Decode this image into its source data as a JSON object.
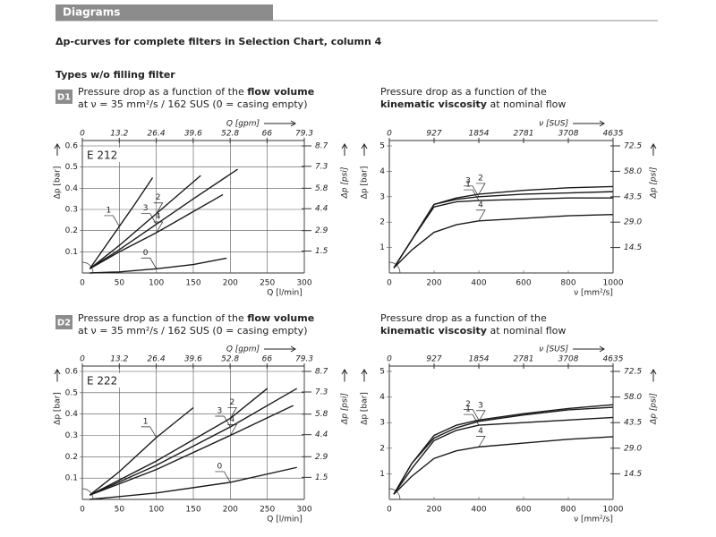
{
  "header": {
    "section": "Diagrams",
    "heading": "Δp-curves for complete filters in Selection Chart, column 4",
    "subheading": "Types w/o filling filter"
  },
  "panels": [
    "D1",
    "D2"
  ],
  "chart_data": [
    {
      "type": "line",
      "title": "Pressure drop as a function of the",
      "title_bold": "flow volume",
      "subtitle": "at ν = 35 mm²/s / 162 SUS (0 = casing empty)",
      "label": "E 212",
      "xlabel": "Q [l/min]",
      "x2label": "Q [gpm]",
      "ylabel": "Δp [bar]",
      "y2label": "Δp [psi]",
      "xlim": [
        0,
        300
      ],
      "xticks": [
        0,
        50,
        100,
        150,
        200,
        250,
        300
      ],
      "x2lim": [
        0,
        79.3
      ],
      "x2ticks": [
        0,
        13.2,
        26.4,
        39.6,
        52.8,
        66.0,
        79.3
      ],
      "ylim": [
        0,
        0.6
      ],
      "yticks": [
        0.1,
        0.2,
        0.3,
        0.4,
        0.5,
        0.6
      ],
      "y2lim": [
        0,
        8.7
      ],
      "y2ticks": [
        1.5,
        2.9,
        4.4,
        5.8,
        7.3,
        8.7
      ],
      "grid": true,
      "series": [
        {
          "name": "1",
          "color": "#1a1a1a",
          "x": [
            10,
            30,
            50,
            70,
            95
          ],
          "values": [
            0.02,
            0.12,
            0.22,
            0.32,
            0.45
          ]
        },
        {
          "name": "2",
          "color": "#1a1a1a",
          "x": [
            10,
            50,
            100,
            160
          ],
          "values": [
            0.02,
            0.13,
            0.28,
            0.46
          ]
        },
        {
          "name": "3",
          "color": "#1a1a1a",
          "x": [
            10,
            50,
            100,
            150,
            210
          ],
          "values": [
            0.02,
            0.11,
            0.23,
            0.35,
            0.49
          ]
        },
        {
          "name": "4",
          "color": "#1a1a1a",
          "x": [
            10,
            50,
            100,
            150,
            190
          ],
          "values": [
            0.02,
            0.1,
            0.19,
            0.29,
            0.37
          ]
        },
        {
          "name": "0",
          "color": "#1a1a1a",
          "x": [
            10,
            50,
            100,
            150,
            195
          ],
          "values": [
            0,
            0.005,
            0.02,
            0.04,
            0.07
          ]
        }
      ]
    },
    {
      "type": "line",
      "title": "Pressure drop as a function of the",
      "title_bold": "kinematic viscosity",
      "title_tail": "at nominal flow",
      "xlabel": "ν [mm²/s]",
      "x2label": "ν [SUS]",
      "ylabel": "Δp [bar]",
      "y2label": "Δp [psi]",
      "xlim": [
        0,
        1000
      ],
      "xticks": [
        0,
        200,
        400,
        600,
        800,
        1000
      ],
      "x2lim": [
        0,
        4635
      ],
      "x2ticks": [
        0,
        927,
        1854,
        2781,
        3708,
        4635
      ],
      "ylim": [
        0,
        5
      ],
      "yticks": [
        1,
        2,
        3,
        4,
        5
      ],
      "y2lim": [
        0,
        72.5
      ],
      "y2ticks": [
        14.5,
        {
          "value": 29,
          "label": "29.0"
        },
        43.5,
        {
          "value": 58,
          "label": "58.0"
        },
        72.5
      ],
      "grid": false,
      "series": [
        {
          "name": "3",
          "color": "#1a1a1a",
          "x": [
            20,
            100,
            200,
            300,
            400,
            600,
            800,
            1000
          ],
          "values": [
            0.2,
            1.3,
            2.7,
            2.9,
            3.0,
            3.1,
            3.15,
            3.2
          ]
        },
        {
          "name": "2",
          "color": "#1a1a1a",
          "x": [
            20,
            100,
            200,
            300,
            400,
            600,
            800,
            1000
          ],
          "values": [
            0.2,
            1.3,
            2.7,
            2.95,
            3.1,
            3.25,
            3.35,
            3.4
          ]
        },
        {
          "name": "1",
          "color": "#1a1a1a",
          "x": [
            20,
            100,
            200,
            300,
            400,
            600,
            800,
            1000
          ],
          "values": [
            0.2,
            1.3,
            2.6,
            2.8,
            2.85,
            2.9,
            2.95,
            2.95
          ]
        },
        {
          "name": "4",
          "color": "#1a1a1a",
          "x": [
            20,
            100,
            200,
            300,
            400,
            600,
            800,
            1000
          ],
          "values": [
            0.2,
            0.9,
            1.6,
            1.9,
            2.05,
            2.15,
            2.25,
            2.3
          ]
        }
      ]
    },
    {
      "type": "line",
      "title": "Pressure drop as a function of the",
      "title_bold": "flow volume",
      "subtitle": "at ν = 35 mm²/s / 162 SUS (0 = casing empty)",
      "label": "E 222",
      "xlabel": "Q [l/min]",
      "x2label": "Q [gpm]",
      "ylabel": "Δp [bar]",
      "y2label": "Δp [psi]",
      "xlim": [
        0,
        300
      ],
      "xticks": [
        0,
        50,
        100,
        150,
        200,
        250,
        300
      ],
      "x2lim": [
        0,
        79.3
      ],
      "x2ticks": [
        0,
        13.2,
        26.4,
        39.6,
        52.8,
        66.0,
        79.3
      ],
      "ylim": [
        0,
        0.6
      ],
      "yticks": [
        0.1,
        0.2,
        0.3,
        0.4,
        0.5,
        0.6
      ],
      "y2lim": [
        0,
        8.7
      ],
      "y2ticks": [
        1.5,
        2.9,
        4.4,
        5.8,
        7.3,
        8.7
      ],
      "grid": true,
      "series": [
        {
          "name": "1",
          "color": "#1a1a1a",
          "x": [
            10,
            50,
            100,
            150
          ],
          "values": [
            0.02,
            0.13,
            0.29,
            0.43
          ]
        },
        {
          "name": "2",
          "color": "#1a1a1a",
          "x": [
            10,
            100,
            200,
            250
          ],
          "values": [
            0.02,
            0.18,
            0.38,
            0.52
          ]
        },
        {
          "name": "3",
          "color": "#1a1a1a",
          "x": [
            10,
            100,
            200,
            290
          ],
          "values": [
            0.02,
            0.16,
            0.34,
            0.52
          ]
        },
        {
          "name": "4",
          "color": "#1a1a1a",
          "x": [
            10,
            100,
            200,
            285
          ],
          "values": [
            0.02,
            0.14,
            0.3,
            0.44
          ]
        },
        {
          "name": "0",
          "color": "#1a1a1a",
          "x": [
            10,
            100,
            200,
            290
          ],
          "values": [
            0,
            0.03,
            0.08,
            0.15
          ]
        }
      ]
    },
    {
      "type": "line",
      "title": "Pressure drop as a function of the",
      "title_bold": "kinematic viscosity",
      "title_tail": "at nominal flow",
      "xlabel": "ν [mm²/s]",
      "x2label": "ν [SUS]",
      "ylabel": "Δp [bar]",
      "y2label": "Δp [psi]",
      "xlim": [
        0,
        1000
      ],
      "xticks": [
        0,
        200,
        400,
        600,
        800,
        1000
      ],
      "x2lim": [
        0,
        4635
      ],
      "x2ticks": [
        0,
        927,
        1854,
        2781,
        3708,
        4635
      ],
      "ylim": [
        0,
        5
      ],
      "yticks": [
        1,
        2,
        3,
        4,
        5
      ],
      "y2lim": [
        0,
        72.5
      ],
      "y2ticks": [
        14.5,
        {
          "value": 29,
          "label": "29.0"
        },
        43.5,
        {
          "value": 58,
          "label": "58.0"
        },
        72.5
      ],
      "grid": false,
      "series": [
        {
          "name": "2",
          "color": "#1a1a1a",
          "x": [
            20,
            100,
            200,
            300,
            400,
            600,
            800,
            1000
          ],
          "values": [
            0.2,
            1.4,
            2.5,
            2.9,
            3.1,
            3.35,
            3.55,
            3.7
          ]
        },
        {
          "name": "3",
          "color": "#1a1a1a",
          "x": [
            20,
            100,
            200,
            300,
            400,
            600,
            800,
            1000
          ],
          "values": [
            0.2,
            1.4,
            2.4,
            2.8,
            3.05,
            3.3,
            3.5,
            3.6
          ]
        },
        {
          "name": "1",
          "color": "#1a1a1a",
          "x": [
            20,
            100,
            200,
            300,
            400,
            600,
            800,
            1000
          ],
          "values": [
            0.2,
            1.2,
            2.3,
            2.7,
            2.9,
            3.0,
            3.1,
            3.2
          ]
        },
        {
          "name": "4",
          "color": "#1a1a1a",
          "x": [
            20,
            100,
            200,
            300,
            400,
            600,
            800,
            1000
          ],
          "values": [
            0.2,
            0.9,
            1.6,
            1.9,
            2.05,
            2.2,
            2.35,
            2.45
          ]
        }
      ]
    }
  ]
}
